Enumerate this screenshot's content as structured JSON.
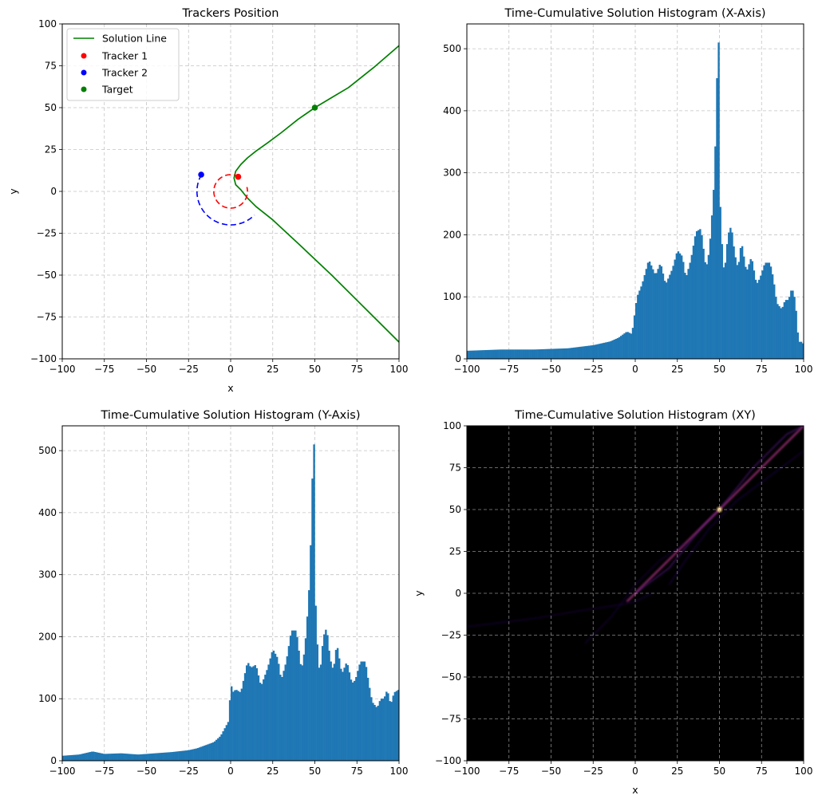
{
  "chart_data": [
    {
      "type": "line",
      "title": "Trackers Position",
      "xlabel": "x",
      "ylabel": "y",
      "xlim": [
        -100,
        100
      ],
      "ylim": [
        -100,
        100
      ],
      "xticks": [
        -100,
        -75,
        -50,
        -25,
        0,
        25,
        50,
        75,
        100
      ],
      "yticks": [
        -100,
        -75,
        -50,
        -25,
        0,
        25,
        50,
        75,
        100
      ],
      "grid": true,
      "legend_position": "upper-left",
      "legend": [
        "Solution Line",
        "Tracker 1",
        "Tracker 2",
        "Target"
      ],
      "series": [
        {
          "name": "Solution Line",
          "kind": "line",
          "color": "#008000",
          "x": [
            100,
            85,
            70,
            60,
            50,
            40,
            30,
            22,
            15,
            10,
            6,
            3,
            2,
            3,
            6,
            10,
            15,
            25,
            40,
            60,
            80,
            100
          ],
          "y": [
            87,
            74,
            62,
            56,
            50,
            43,
            35,
            29,
            24,
            20,
            16,
            12,
            8,
            4,
            1,
            -4,
            -9,
            -17,
            -31,
            -50,
            -70,
            -90
          ]
        },
        {
          "name": "Tracker 1",
          "kind": "point",
          "color": "#ff0000",
          "x": [
            4.5
          ],
          "y": [
            8.7
          ]
        },
        {
          "name": "Tracker 2",
          "kind": "point",
          "color": "#0000ff",
          "x": [
            -17.5
          ],
          "y": [
            10
          ]
        },
        {
          "name": "Target",
          "kind": "point",
          "color": "#008000",
          "x": [
            50
          ],
          "y": [
            50
          ]
        },
        {
          "kind": "dashed-arc",
          "color": "#ff0000",
          "center": [
            0,
            0
          ],
          "radius": 10,
          "from_deg": 60,
          "to_deg": 375
        },
        {
          "kind": "dashed-arc",
          "color": "#0000ff",
          "center": [
            0,
            0
          ],
          "radius": 20,
          "from_deg": 150,
          "to_deg": 315
        }
      ]
    },
    {
      "type": "bar",
      "title": "Time-Cumulative Solution Histogram (X-Axis)",
      "xlim": [
        -100,
        100
      ],
      "ylim": [
        0,
        540
      ],
      "xticks": [
        -100,
        -75,
        -50,
        -25,
        0,
        25,
        50,
        75,
        100
      ],
      "yticks": [
        0,
        100,
        200,
        300,
        400,
        500
      ],
      "grid": true,
      "color": "#1f77b4",
      "bin_width": 1,
      "x": [
        -100,
        -80,
        -60,
        -40,
        -25,
        -15,
        -10,
        -5,
        -2,
        0,
        1,
        4,
        8,
        12,
        15,
        18,
        22,
        25,
        28,
        30,
        33,
        36,
        39,
        42,
        44,
        46,
        47,
        48,
        49,
        49.5,
        50,
        50.5,
        51,
        52,
        53,
        55,
        57,
        59,
        61,
        63,
        66,
        69,
        72,
        74,
        77,
        80,
        82,
        84,
        87,
        89,
        91,
        93,
        95,
        97,
        98,
        99,
        100
      ],
      "values": [
        13,
        15,
        15,
        17,
        22,
        28,
        34,
        44,
        40,
        80,
        100,
        120,
        160,
        135,
        155,
        120,
        145,
        175,
        165,
        130,
        160,
        205,
        210,
        145,
        175,
        250,
        295,
        390,
        515,
        510,
        395,
        245,
        215,
        155,
        140,
        200,
        215,
        170,
        145,
        190,
        140,
        165,
        120,
        130,
        155,
        155,
        130,
        90,
        80,
        95,
        95,
        115,
        95,
        25,
        30,
        25,
        25
      ]
    },
    {
      "type": "bar",
      "title": "Time-Cumulative Solution Histogram (Y-Axis)",
      "xlim": [
        -100,
        100
      ],
      "ylim": [
        0,
        540
      ],
      "xticks": [
        -100,
        -75,
        -50,
        -25,
        0,
        25,
        50,
        75,
        100
      ],
      "yticks": [
        0,
        100,
        200,
        300,
        400,
        500
      ],
      "grid": true,
      "color": "#1f77b4",
      "bin_width": 1,
      "x": [
        -100,
        -90,
        -82,
        -75,
        -65,
        -55,
        -45,
        -35,
        -25,
        -20,
        -15,
        -10,
        -6,
        -3,
        -1,
        0,
        1,
        3,
        6,
        10,
        12,
        15,
        18,
        22,
        25,
        28,
        30,
        33,
        36,
        39,
        42,
        44,
        46,
        47,
        48,
        49,
        49.5,
        50,
        50.5,
        51,
        52,
        53,
        55,
        57,
        59,
        61,
        63,
        66,
        69,
        72,
        74,
        77,
        80,
        82,
        84,
        87,
        89,
        91,
        93,
        95,
        97,
        100
      ],
      "values": [
        8,
        10,
        15,
        11,
        12,
        10,
        12,
        14,
        17,
        20,
        25,
        30,
        40,
        55,
        65,
        130,
        110,
        115,
        110,
        160,
        150,
        155,
        120,
        150,
        180,
        165,
        130,
        160,
        210,
        210,
        145,
        180,
        250,
        300,
        395,
        515,
        510,
        400,
        250,
        215,
        160,
        140,
        200,
        215,
        165,
        145,
        190,
        140,
        160,
        125,
        130,
        160,
        160,
        125,
        95,
        85,
        100,
        100,
        115,
        90,
        110,
        115
      ]
    },
    {
      "type": "heatmap",
      "title": "Time-Cumulative Solution Histogram (XY)",
      "xlabel": "x",
      "ylabel": "y",
      "xlim": [
        -100,
        100
      ],
      "ylim": [
        -100,
        100
      ],
      "xticks": [
        -100,
        -75,
        -50,
        -25,
        0,
        25,
        50,
        75,
        100
      ],
      "yticks": [
        -100,
        -75,
        -50,
        -25,
        0,
        25,
        50,
        75,
        100
      ],
      "grid": true,
      "colormap": "inferno",
      "background": "#000000",
      "peak": [
        50,
        50
      ],
      "traces": [
        {
          "x": [
            -5,
            0,
            10,
            25,
            40,
            50,
            60,
            75,
            100
          ],
          "y": [
            -5,
            0,
            10,
            25,
            40,
            50,
            60,
            75,
            100
          ],
          "intensity": 0.6
        },
        {
          "x": [
            0,
            20,
            40,
            50,
            70,
            90,
            100
          ],
          "y": [
            0,
            15,
            40,
            50,
            75,
            95,
            100
          ],
          "intensity": 0.35
        },
        {
          "x": [
            -100,
            -60,
            -30,
            -10,
            0,
            10
          ],
          "y": [
            -20,
            -15,
            -10,
            -7,
            -5,
            0
          ],
          "intensity": 0.15
        },
        {
          "x": [
            20,
            30,
            45,
            60,
            80,
            100
          ],
          "y": [
            5,
            20,
            40,
            55,
            70,
            85
          ],
          "intensity": 0.2
        },
        {
          "x": [
            -30,
            -15,
            0,
            15,
            30
          ],
          "y": [
            -30,
            -15,
            5,
            20,
            30
          ],
          "intensity": 0.12
        }
      ]
    }
  ]
}
